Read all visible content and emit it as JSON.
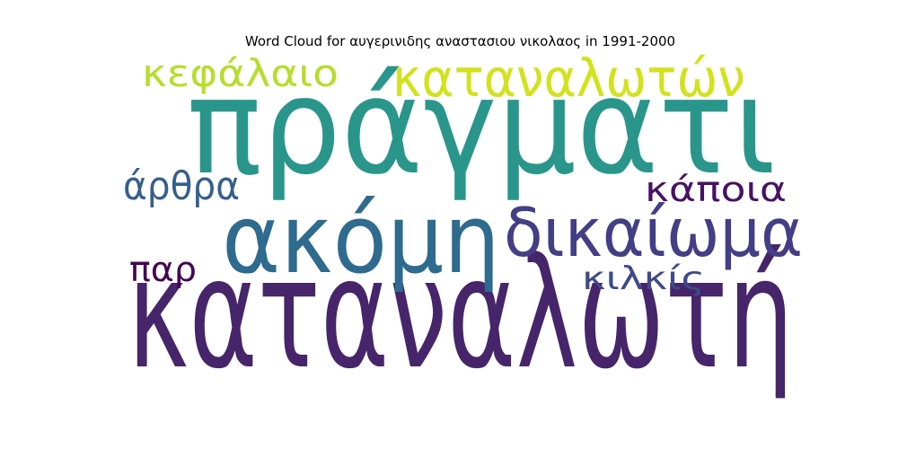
{
  "chart_data": {
    "type": "wordcloud",
    "title": "Word Cloud for αυγερινιδης αναστασιου νικολαος in 1991-2000",
    "words": [
      {
        "text": "καταναλωτή",
        "weight": 1.0,
        "color": "#46256b"
      },
      {
        "text": "πράγματι",
        "weight": 0.9,
        "color": "#2a968b"
      },
      {
        "text": "ακόμη",
        "weight": 0.75,
        "color": "#2e6b8e"
      },
      {
        "text": "δικαίωμα",
        "weight": 0.57,
        "color": "#433e86"
      },
      {
        "text": "καταναλωτών",
        "weight": 0.46,
        "color": "#d2e21b"
      },
      {
        "text": "κεφάλαιο",
        "weight": 0.35,
        "color": "#b5de2b"
      },
      {
        "text": "άρθρα",
        "weight": 0.35,
        "color": "#355f8d"
      },
      {
        "text": "κάποια",
        "weight": 0.32,
        "color": "#471164"
      },
      {
        "text": "παρ",
        "weight": 0.31,
        "color": "#440154"
      },
      {
        "text": "κιλκίς",
        "weight": 0.29,
        "color": "#3e4a89"
      }
    ]
  }
}
